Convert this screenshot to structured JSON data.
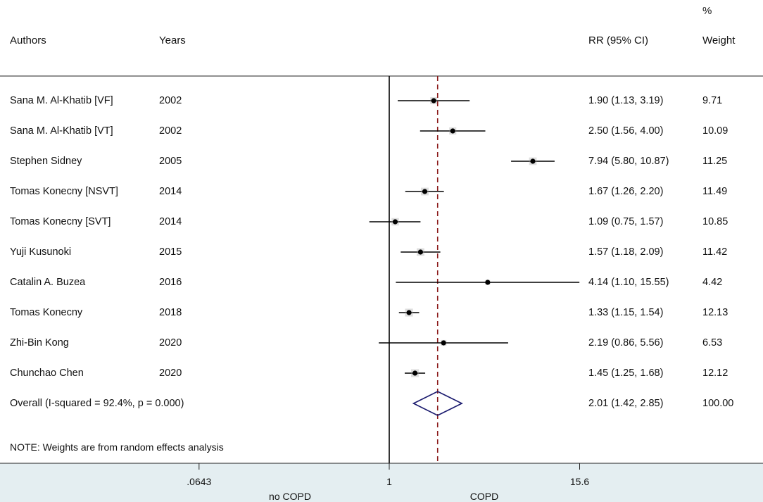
{
  "headers": {
    "authors": "Authors",
    "years": "Years",
    "rr": "RR (95% CI)",
    "weight_top": "%",
    "weight_bottom": "Weight"
  },
  "note": "NOTE: Weights are from random effects analysis",
  "chart_data": {
    "type": "forest",
    "studies": [
      {
        "author": "Sana M. Al-Khatib [VF]",
        "year": "2002",
        "rr": 1.9,
        "lo": 1.13,
        "hi": 3.19,
        "rr_text": "1.90 (1.13, 3.19)",
        "weight": "9.71"
      },
      {
        "author": "Sana M. Al-Khatib [VT]",
        "year": "2002",
        "rr": 2.5,
        "lo": 1.56,
        "hi": 4.0,
        "rr_text": "2.50 (1.56, 4.00)",
        "weight": "10.09"
      },
      {
        "author": "Stephen Sidney",
        "year": "2005",
        "rr": 7.94,
        "lo": 5.8,
        "hi": 10.87,
        "rr_text": "7.94 (5.80, 10.87)",
        "weight": "11.25"
      },
      {
        "author": "Tomas Konecny [NSVT]",
        "year": "2014",
        "rr": 1.67,
        "lo": 1.26,
        "hi": 2.2,
        "rr_text": "1.67 (1.26, 2.20)",
        "weight": "11.49"
      },
      {
        "author": "Tomas Konecny [SVT]",
        "year": "2014",
        "rr": 1.09,
        "lo": 0.75,
        "hi": 1.57,
        "rr_text": "1.09 (0.75, 1.57)",
        "weight": "10.85"
      },
      {
        "author": "Yuji Kusunoki",
        "year": "2015",
        "rr": 1.57,
        "lo": 1.18,
        "hi": 2.09,
        "rr_text": "1.57 (1.18, 2.09)",
        "weight": "11.42"
      },
      {
        "author": "Catalin A. Buzea",
        "year": "2016",
        "rr": 4.14,
        "lo": 1.1,
        "hi": 15.55,
        "rr_text": "4.14 (1.10, 15.55)",
        "weight": "4.42"
      },
      {
        "author": "Tomas Konecny",
        "year": "2018",
        "rr": 1.33,
        "lo": 1.15,
        "hi": 1.54,
        "rr_text": "1.33 (1.15, 1.54)",
        "weight": "12.13"
      },
      {
        "author": "Zhi-Bin Kong",
        "year": "2020",
        "rr": 2.19,
        "lo": 0.86,
        "hi": 5.56,
        "rr_text": "2.19 (0.86, 5.56)",
        "weight": "6.53"
      },
      {
        "author": "Chunchao Chen",
        "year": "2020",
        "rr": 1.45,
        "lo": 1.25,
        "hi": 1.68,
        "rr_text": "1.45 (1.25, 1.68)",
        "weight": "12.12"
      }
    ],
    "overall": {
      "label": "Overall  (I-squared = 92.4%, p = 0.000)",
      "rr": 2.01,
      "lo": 1.42,
      "hi": 2.85,
      "rr_text": "2.01 (1.42, 2.85)",
      "weight": "100.00"
    },
    "x_scale": "log",
    "null_line": 1,
    "xticks": [
      {
        "value": 0.0643,
        "label": ".0643"
      },
      {
        "value": 1,
        "label": "1"
      },
      {
        "value": 15.6,
        "label": "15.6"
      }
    ],
    "favours_left": "no COPD",
    "favours_right": "COPD",
    "colors": {
      "marker": "#000000",
      "diamond": "#1a1a6e",
      "overall_line": "#8b1a1a",
      "weight_box": "#a0a0a0"
    }
  }
}
